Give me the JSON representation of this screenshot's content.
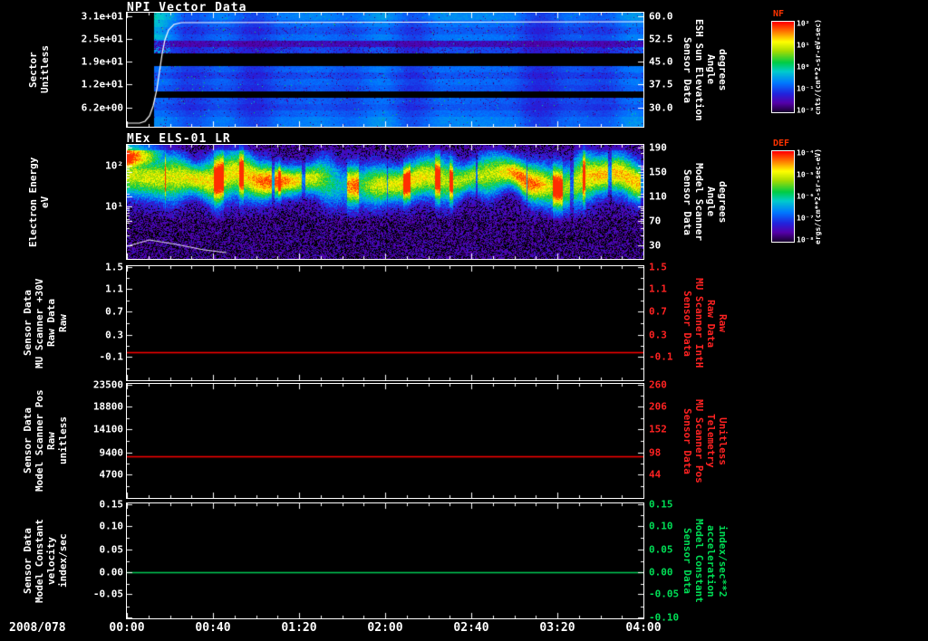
{
  "chart_data": {
    "type": "multi-panel-time-series",
    "x_axis": {
      "date_label": "2008/078",
      "ticks": [
        "00:00",
        "00:40",
        "01:20",
        "02:00",
        "02:40",
        "03:20",
        "04:00"
      ],
      "start": "2008/078 00:00",
      "end": "04:00"
    },
    "panels": [
      {
        "id": "npi-vector-data",
        "title": "NPI Vector Data",
        "type": "heatmap",
        "left_axis": {
          "label_lines": [
            "Sector",
            "Unitless"
          ],
          "ticks": [
            "3.1e+01",
            "2.5e+01",
            "1.9e+01",
            "1.2e+01",
            "6.2e+00"
          ]
        },
        "right_axis": {
          "label_lines": [
            "Sensor Data",
            "ESH Sun Elevation",
            "Angle",
            "degrees"
          ],
          "ticks": [
            "60.0",
            "52.5",
            "45.0",
            "37.5",
            "30.0"
          ]
        },
        "colorbar": "NF",
        "overlay_line": {
          "label": "ESH sun elevation angle",
          "color": "#ffffff",
          "shape": "rises steeply from ~30 deg to ~60 deg near 00:10 then stays near 60 deg"
        },
        "content": "Blue sector-vs-time count spectrogram; no data before ~00:12; black dropout bands near mid sectors and one lower sector; purple speckle noise throughout; bright cyan patch just after data start"
      },
      {
        "id": "els-spectrogram",
        "title": "MEx ELS-01 LR",
        "type": "heatmap",
        "left_axis": {
          "label_lines": [
            "Electron Energy",
            "eV"
          ],
          "ticks": [
            "10²",
            "10¹"
          ]
        },
        "right_axis": {
          "label_lines": [
            "Sensor Data",
            "Model Scanner",
            "Angle",
            "degrees"
          ],
          "ticks": [
            "190",
            "150",
            "110",
            "70",
            "30"
          ]
        },
        "colorbar": "DEF",
        "content": "Electron differential energy flux; intense red patch above 100 eV during 00:00-00:15; persistent green-yellow band near 20-80 eV with bursty vertical striations; sparse blue speckle background at low energies"
      },
      {
        "id": "mu-scanner-30v",
        "type": "line",
        "left_axis": {
          "label_lines": [
            "Sensor Data",
            "MU Scanner +30V",
            "Raw Data",
            "Raw"
          ],
          "ticks": [
            "1.5",
            "1.1",
            "0.7",
            "0.3",
            "-0.1"
          ]
        },
        "right_axis": {
          "label_lines": [
            "Sensor Data",
            "MU Scanner IntH",
            "Raw Data",
            "Raw"
          ],
          "ticks": [
            "1.5",
            "1.1",
            "0.7",
            "0.3",
            "-0.1"
          ],
          "color": "#ff2222"
        },
        "y_range": [
          -0.5,
          1.5
        ],
        "line": {
          "value": 0.0,
          "color": "#ff0000",
          "shape": "constant"
        }
      },
      {
        "id": "model-scanner-pos",
        "type": "line",
        "left_axis": {
          "label_lines": [
            "Sensor Data",
            "Model Scanner Pos",
            "Raw",
            "unitless"
          ],
          "ticks": [
            "23500",
            "18800",
            "14100",
            "9400",
            "4700"
          ]
        },
        "right_axis": {
          "label_lines": [
            "Sensor Data",
            "MU Scanner Pos",
            "Telemetry",
            "Unitless"
          ],
          "ticks": [
            "260",
            "206",
            "152",
            "98",
            "44"
          ],
          "color": "#ff2222"
        },
        "y_range": [
          0,
          23500
        ],
        "line": {
          "value": 8500,
          "color": "#ff0000",
          "shape": "constant"
        }
      },
      {
        "id": "model-constant-velocity",
        "type": "line",
        "left_axis": {
          "label_lines": [
            "Sensor Data",
            "Model Constant",
            "velocity",
            "index/sec"
          ],
          "ticks": [
            "0.15",
            "0.10",
            "0.05",
            "0.00",
            "-0.05"
          ]
        },
        "right_axis": {
          "label_lines": [
            "Sensor Data",
            "Model Constant",
            "acceleration",
            "index/sec**2"
          ],
          "ticks": [
            "0.15",
            "0.10",
            "0.05",
            "0.00",
            "-0.05",
            "-0.10"
          ],
          "color": "#00dd55"
        },
        "y_range": [
          -0.1,
          0.15
        ],
        "line": {
          "value": 0.0,
          "color": "#00cc55",
          "shape": "constant"
        }
      }
    ],
    "colorbars": [
      {
        "label": "NF",
        "units": "cnts/(cm**2-sr-eV-sec)",
        "ticks": [
          "10²",
          "10¹",
          "10⁰",
          "10⁻¹",
          "10⁻²"
        ]
      },
      {
        "label": "DEF",
        "units": "ergs/(cm**2-sr-sec-eV)",
        "ticks": [
          "10⁻⁴",
          "10⁻⁵",
          "10⁻⁶",
          "10⁻⁷",
          "10⁻⁸"
        ]
      }
    ]
  }
}
